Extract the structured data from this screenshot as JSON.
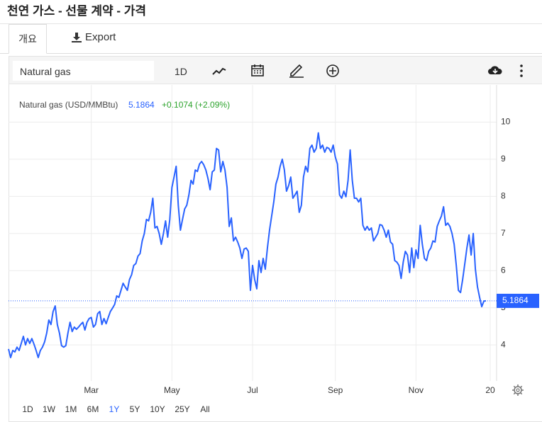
{
  "header": {
    "title": "천연 가스 - 선물 계약 - 가격"
  },
  "tabs": [
    "개요",
    "Export"
  ],
  "toolbar": {
    "symbol": "Natural gas",
    "interval": "1D"
  },
  "chart_data": {
    "type": "line",
    "series": [
      {
        "name": "Natural gas (USD/MMBtu)",
        "color": "#2962ff",
        "values": [
          3.89,
          3.66,
          3.85,
          3.81,
          3.94,
          3.85,
          4.04,
          4.23,
          4.0,
          4.17,
          4.04,
          4.17,
          4.02,
          3.85,
          3.66,
          3.85,
          3.94,
          4.08,
          4.32,
          4.67,
          4.55,
          4.9,
          5.05,
          4.55,
          4.32,
          3.98,
          3.94,
          3.98,
          4.32,
          4.61,
          4.36,
          4.48,
          4.42,
          4.48,
          4.55,
          4.61,
          4.4,
          4.61,
          4.71,
          4.74,
          4.48,
          4.55,
          4.84,
          4.9,
          4.55,
          4.71,
          4.57,
          4.74,
          4.9,
          4.99,
          5.09,
          5.32,
          5.28,
          5.47,
          5.66,
          5.56,
          5.47,
          5.76,
          5.89,
          6.14,
          6.19,
          6.39,
          6.46,
          6.8,
          7.0,
          7.38,
          7.34,
          7.57,
          7.95,
          7.15,
          7.19,
          7.0,
          6.71,
          7.0,
          7.34,
          6.9,
          7.38,
          8.24,
          8.52,
          8.81,
          7.76,
          7.09,
          7.38,
          7.66,
          7.76,
          8.04,
          8.43,
          8.33,
          8.71,
          8.67,
          8.87,
          8.94,
          8.85,
          8.71,
          8.48,
          8.18,
          8.66,
          8.71,
          9.29,
          9.25,
          8.66,
          8.94,
          8.71,
          8.24,
          7.19,
          7.42,
          6.8,
          6.9,
          6.77,
          6.61,
          6.33,
          6.58,
          6.61,
          6.52,
          5.47,
          6.14,
          5.76,
          5.51,
          6.27,
          5.95,
          6.33,
          6.04,
          6.61,
          7.09,
          7.47,
          7.85,
          8.33,
          8.52,
          8.81,
          9.0,
          8.71,
          8.14,
          8.29,
          8.52,
          7.95,
          8.04,
          8.14,
          7.57,
          7.76,
          8.52,
          8.81,
          8.66,
          9.29,
          9.38,
          9.19,
          9.29,
          9.71,
          9.29,
          9.38,
          9.19,
          9.32,
          9.29,
          9.19,
          9.38,
          9.06,
          8.87,
          8.04,
          7.95,
          8.14,
          7.99,
          8.43,
          9.25,
          8.43,
          7.95,
          7.95,
          7.85,
          7.95,
          7.22,
          7.09,
          7.19,
          7.09,
          7.15,
          6.8,
          6.9,
          7.0,
          7.24,
          7.22,
          7.09,
          6.9,
          7.09,
          6.77,
          6.71,
          6.27,
          6.23,
          6.14,
          5.79,
          6.23,
          6.52,
          6.42,
          5.95,
          6.61,
          6.08,
          6.56,
          6.33,
          7.22,
          6.71,
          6.33,
          6.27,
          6.52,
          6.61,
          6.8,
          6.77,
          7.19,
          7.34,
          7.47,
          7.72,
          7.22,
          7.28,
          7.19,
          7.0,
          6.71,
          6.14,
          5.47,
          5.41,
          5.76,
          6.18,
          6.61,
          6.96,
          6.42,
          7.0,
          6.04,
          5.56,
          5.28,
          5.03,
          5.18,
          5.1864
        ]
      }
    ],
    "last_value": 5.1864,
    "change": "+0.1074 (+2.09%)",
    "xlim": [
      0,
      230
    ],
    "xticks": [
      {
        "value": 39,
        "label": "Mar"
      },
      {
        "value": 77,
        "label": "May"
      },
      {
        "value": 115,
        "label": "Jul"
      },
      {
        "value": 154,
        "label": "Sep"
      },
      {
        "value": 192,
        "label": "Nov"
      },
      {
        "value": 227,
        "label": "20"
      }
    ],
    "ylim": [
      3.03,
      11.0
    ],
    "yticks": [
      4,
      5,
      6,
      7,
      8,
      9,
      10
    ],
    "grid": true
  },
  "ranges": [
    "1D",
    "1W",
    "1M",
    "6M",
    "1Y",
    "5Y",
    "10Y",
    "25Y",
    "All"
  ],
  "active_range": "1Y"
}
